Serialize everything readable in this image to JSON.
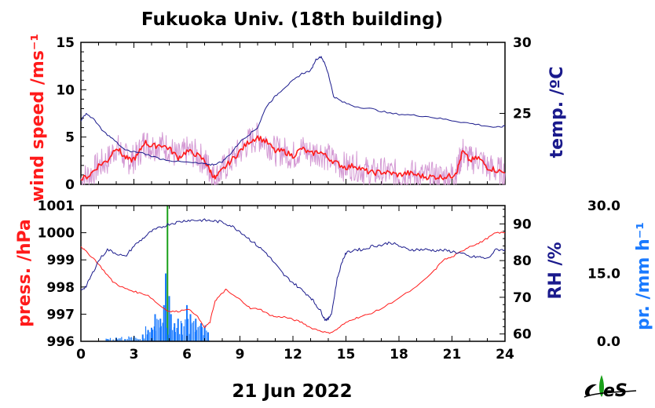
{
  "title": "Fukuoka Univ. (18th building)",
  "date_label": "21 Jun 2022",
  "colors": {
    "red": "#ff1a1a",
    "pink": "#d49ad4",
    "navy": "#1a1a8c",
    "blue": "#1a7aff",
    "green": "#1aa01a",
    "axis": "#000000"
  },
  "chart_data": [
    {
      "type": "line",
      "panel": "top",
      "ylabel_left": "wind speed /ms⁻¹",
      "ylabel_right": "temp. /ºC",
      "xlim": [
        0,
        24
      ],
      "ylim_left": [
        0,
        15
      ],
      "ylim_right": [
        20,
        30
      ],
      "yticks_left": [
        0,
        5,
        10,
        15
      ],
      "yticks_right": [
        25,
        30
      ],
      "series": [
        {
          "axis": "left",
          "color": "red",
          "x": [
            0,
            0.5,
            1,
            1.5,
            2,
            2.4,
            2.8,
            3.2,
            3.6,
            4,
            4.5,
            5,
            5.5,
            6,
            6.5,
            7,
            7.3,
            7.6,
            8,
            8.5,
            9,
            9.5,
            10,
            10.5,
            11,
            11.5,
            12,
            12.5,
            13,
            13.5,
            14,
            14.5,
            15,
            15.5,
            16,
            16.5,
            17,
            17.5,
            18,
            18.5,
            19,
            19.5,
            20,
            20.5,
            21,
            21.3,
            21.6,
            22,
            22.5,
            23,
            23.5,
            24
          ],
          "y": [
            0.5,
            1,
            2,
            2.5,
            4,
            3,
            2.5,
            3,
            4.5,
            4,
            4.2,
            3.8,
            2.8,
            3.5,
            3.2,
            2.5,
            1.5,
            0.6,
            1.5,
            2.5,
            3.5,
            4.5,
            5,
            4.5,
            3.5,
            3.5,
            3,
            3.8,
            3.2,
            3.5,
            2.8,
            2.2,
            1.8,
            2,
            1.5,
            1.2,
            1.3,
            1.2,
            1,
            1.2,
            1,
            0.8,
            0.8,
            0.8,
            0.9,
            1.5,
            3.5,
            2.5,
            2.8,
            1.8,
            1.5,
            1.2
          ]
        },
        {
          "axis": "right",
          "color": "navy",
          "x": [
            0,
            0.3,
            0.8,
            1.2,
            1.8,
            2.5,
            3.5,
            4.5,
            5.5,
            6.5,
            7.2,
            7.5,
            8,
            8.5,
            9,
            9.5,
            10,
            10.5,
            11,
            11.5,
            12,
            12.5,
            13,
            13.3,
            13.6,
            13.8,
            14,
            14.3,
            14.8,
            15.5,
            16.5,
            17.5,
            18.5,
            19.5,
            20.5,
            21.5,
            22.5,
            23.5,
            24
          ],
          "y": [
            24.5,
            25,
            24.5,
            23.8,
            23.2,
            22.4,
            22.2,
            21.8,
            21.6,
            21.5,
            21.4,
            21.4,
            21.6,
            22.2,
            23,
            23.5,
            24,
            25.5,
            26.2,
            26.8,
            27.3,
            27.8,
            28,
            28.8,
            29,
            28.5,
            27.8,
            26.2,
            25.8,
            25.5,
            25.3,
            25,
            24.9,
            24.8,
            24.6,
            24.4,
            24.2,
            24,
            24.1
          ]
        }
      ]
    },
    {
      "type": "line",
      "panel": "bottom",
      "xlabel": "21 Jun 2022",
      "ylabel_left": "press. /hPa",
      "ylabel_right": "RH /%",
      "ylabel_far_right": "pr. /mm h⁻¹",
      "xlim": [
        0,
        24
      ],
      "xticks": [
        0,
        3,
        6,
        9,
        12,
        15,
        18,
        21,
        24
      ],
      "ylim_left": [
        996,
        1001
      ],
      "ylim_right": [
        58,
        95
      ],
      "ylim_far_right": [
        0,
        30
      ],
      "yticks_left": [
        996,
        997,
        998,
        999,
        1000,
        1001
      ],
      "yticks_right": [
        60,
        70,
        80,
        90
      ],
      "yticks_far_right": [
        "0.0",
        "15.0",
        "30.0"
      ],
      "series": [
        {
          "axis": "left",
          "color": "red",
          "x": [
            0,
            0.3,
            0.8,
            1.3,
            1.8,
            2.3,
            2.7,
            3.2,
            3.8,
            4.5,
            5,
            5.5,
            6,
            6.5,
            7,
            7.3,
            7.6,
            7.9,
            8.2,
            8.6,
            9.1,
            9.6,
            10.1,
            10.6,
            11,
            11.5,
            12,
            12.5,
            13,
            13.5,
            14,
            14.4,
            14.8,
            15.3,
            15.8,
            16.3,
            17,
            18,
            19,
            20,
            20.5,
            21,
            21.5,
            22,
            22.5,
            23,
            23.5,
            24
          ],
          "y": [
            999.5,
            999.3,
            999,
            998.6,
            998.2,
            998,
            997.9,
            997.8,
            997.7,
            997.3,
            997.1,
            997.1,
            997.2,
            997,
            996.5,
            996.7,
            997.5,
            997.7,
            997.9,
            997.7,
            997.5,
            997.2,
            997.2,
            997,
            996.9,
            996.9,
            996.8,
            996.7,
            996.5,
            996.4,
            996.3,
            996.4,
            996.6,
            996.8,
            996.9,
            997,
            997.2,
            997.6,
            998,
            998.6,
            999,
            999.1,
            999.3,
            999.5,
            999.6,
            999.8,
            1000,
            1000
          ]
        },
        {
          "axis": "right",
          "color": "navy",
          "x": [
            0,
            0.3,
            0.6,
            1,
            1.5,
            2,
            2.5,
            3,
            3.5,
            4,
            4.5,
            5,
            5.5,
            6,
            6.5,
            7,
            7.5,
            8,
            8.5,
            9,
            9.5,
            10,
            10.5,
            11,
            11.5,
            12,
            12.5,
            13,
            13.3,
            13.6,
            13.8,
            14,
            14.2,
            14.5,
            14.8,
            15,
            15.5,
            16,
            16.5,
            17,
            17.5,
            18,
            18.5,
            19,
            19.5,
            20,
            20.5,
            21,
            21.5,
            22,
            22.5,
            23,
            23.5,
            24
          ],
          "y": [
            72,
            73,
            76,
            80,
            83,
            82,
            81,
            84,
            86,
            88,
            89,
            90,
            90.5,
            91,
            91,
            91,
            90.8,
            90.5,
            89.5,
            88,
            86,
            84,
            82,
            79,
            76,
            74,
            72,
            70,
            68,
            66,
            64,
            64,
            66,
            75,
            80,
            82,
            83,
            83,
            84,
            84.2,
            85,
            84,
            83,
            83,
            83,
            82.8,
            82.8,
            82.5,
            82,
            81,
            81,
            80.5,
            83,
            83
          ]
        },
        {
          "axis": "far_right",
          "type": "bar",
          "color": "blue",
          "x": [
            1.5,
            2,
            2.5,
            3,
            3.5,
            3.8,
            4,
            4.2,
            4.5,
            4.7,
            4.8,
            4.9,
            5,
            5.1,
            5.3,
            5.5,
            5.7,
            6,
            6.2,
            6.5,
            6.8,
            7,
            7.2
          ],
          "y": [
            0.5,
            0.8,
            0.5,
            0.8,
            1.5,
            2.5,
            3,
            6,
            5,
            8,
            15,
            30,
            10,
            6,
            4,
            5,
            4,
            8,
            6,
            5,
            4,
            3,
            2
          ]
        }
      ]
    }
  ]
}
